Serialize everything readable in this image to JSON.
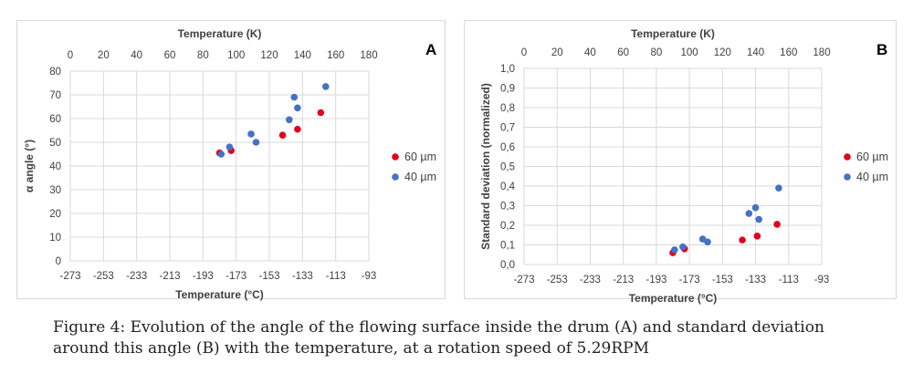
{
  "caption": "Figure 4: Evolution of the angle of the flowing surface inside the drum (A) and standard deviation around this angle (B) with the temperature, at a rotation speed of 5.29RPM",
  "colors": {
    "60um": "#e3001b",
    "40um": "#4472c4",
    "grid": "#d9d9d9",
    "border": "#d9d9d9"
  },
  "chart_data": [
    {
      "type": "scatter",
      "panel_label": "A",
      "title": "",
      "x_bottom_label": "Temperature (°C)",
      "x_top_label": "Temperature (K)",
      "ylabel": "α angle (°)",
      "xlim": [
        -273,
        -93
      ],
      "x_bottom_ticks": [
        "-273",
        "-253",
        "-233",
        "-213",
        "-193",
        "-173",
        "-153",
        "-133",
        "-113",
        "-93"
      ],
      "x_top_ticks": [
        "0",
        "20",
        "40",
        "60",
        "80",
        "100",
        "120",
        "140",
        "160",
        "180"
      ],
      "ylim": [
        0,
        80
      ],
      "y_ticks": [
        "0",
        "10",
        "20",
        "30",
        "40",
        "50",
        "60",
        "70",
        "80"
      ],
      "grid": true,
      "legend_position": "right",
      "series": [
        {
          "name": "60 µm",
          "color_key": "60um",
          "x": [
            -183,
            -176,
            -145,
            -136,
            -122
          ],
          "y": [
            45.5,
            46.5,
            53,
            55.5,
            62.5
          ]
        },
        {
          "name": "40 µm",
          "color_key": "40um",
          "x": [
            -182,
            -177,
            -164,
            -161,
            -141,
            -138,
            -136,
            -119
          ],
          "y": [
            45,
            48,
            53.5,
            50,
            59.5,
            69,
            64.5,
            73.5
          ]
        }
      ]
    },
    {
      "type": "scatter",
      "panel_label": "B",
      "title": "",
      "x_bottom_label": "Temperature (°C)",
      "x_top_label": "Temperature (K)",
      "ylabel": "Standard deviation (normalized)",
      "xlim": [
        -273,
        -93
      ],
      "x_bottom_ticks": [
        "-273",
        "-253",
        "-233",
        "-213",
        "-193",
        "-173",
        "-153",
        "-133",
        "-113",
        "-93"
      ],
      "x_top_ticks": [
        "0",
        "20",
        "40",
        "60",
        "80",
        "100",
        "120",
        "140",
        "160",
        "180"
      ],
      "ylim": [
        0,
        1.0
      ],
      "y_ticks": [
        "0,0",
        "0,1",
        "0,2",
        "0,3",
        "0,4",
        "0,5",
        "0,6",
        "0,7",
        "0,8",
        "0,9",
        "1,0"
      ],
      "grid": true,
      "legend_position": "right",
      "series": [
        {
          "name": "60 µm",
          "color_key": "60um",
          "x": [
            -183,
            -176,
            -141,
            -132,
            -120
          ],
          "y": [
            0.06,
            0.08,
            0.125,
            0.145,
            0.205
          ]
        },
        {
          "name": "40 µm",
          "color_key": "40um",
          "x": [
            -182,
            -177,
            -165,
            -162,
            -137,
            -133,
            -131,
            -119
          ],
          "y": [
            0.075,
            0.09,
            0.13,
            0.115,
            0.26,
            0.29,
            0.23,
            0.39
          ]
        }
      ]
    }
  ]
}
